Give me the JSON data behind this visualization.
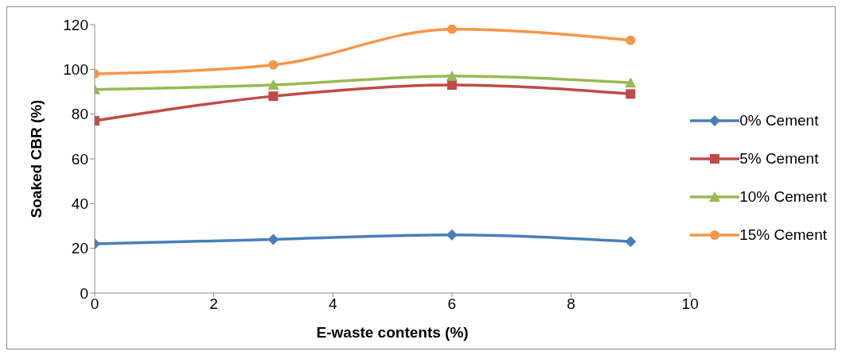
{
  "chart_data": {
    "type": "line",
    "xlabel": "E-waste contents (%)",
    "ylabel": "Soaked CBR (%)",
    "x": [
      0,
      3,
      6,
      9
    ],
    "xlim": [
      0,
      10
    ],
    "xticks": [
      0,
      2,
      4,
      6,
      8,
      10
    ],
    "ylim": [
      0,
      120
    ],
    "yticks": [
      0,
      20,
      40,
      60,
      80,
      100,
      120
    ],
    "grid": false,
    "legend": "right",
    "line_style": "solid",
    "series": [
      {
        "name": "0% Cement",
        "color": "#4a7ebb",
        "marker": "diamond",
        "values": [
          22,
          24,
          26,
          23
        ]
      },
      {
        "name": "5% Cement",
        "color": "#be4b48",
        "marker": "square",
        "values": [
          77,
          88,
          93,
          89
        ]
      },
      {
        "name": "10% Cement",
        "color": "#98b954",
        "marker": "triangle",
        "values": [
          91,
          93,
          97,
          94
        ]
      },
      {
        "name": "15% Cement",
        "color": "#f79646",
        "marker": "circle",
        "values": [
          98,
          102,
          118,
          113
        ]
      }
    ]
  }
}
